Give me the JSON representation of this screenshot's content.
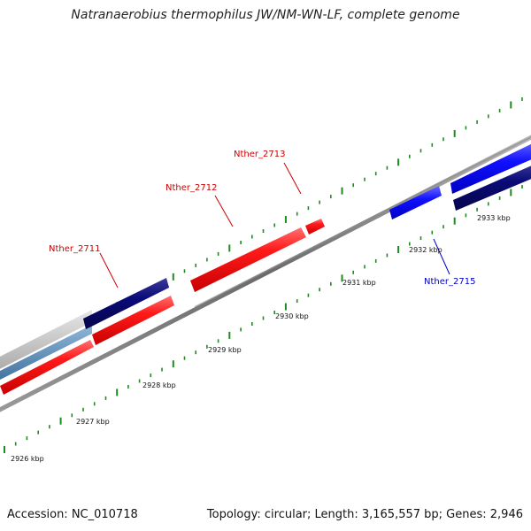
{
  "title": "Natranaerobius thermophilus JW/NM-WN-LF, complete genome",
  "footer": {
    "accession": "Accession: NC_010718",
    "summary": "Topology: circular; Length: 3,165,557 bp; Genes: 2,946"
  },
  "colors": {
    "forward_gene": "#ff1a1a",
    "reverse_gene": "#1a1aff",
    "reverse_gene_dark": "#0a0a7a",
    "tick": "#1f8a1f",
    "backbone": "#7a7a7a",
    "forward_label": "#cc0000",
    "reverse_label": "#0000cc"
  },
  "scale_labels": [
    "2926 kbp",
    "2927 kbp",
    "2928 kbp",
    "2929 kbp",
    "2930 kbp",
    "2931 kbp",
    "2932 kbp",
    "2933 kbp"
  ],
  "gene_labels": {
    "nther_2711": "Nther_2711",
    "nther_2712": "Nther_2712",
    "nther_2713": "Nther_2713",
    "nther_2715": "Nther_2715"
  }
}
